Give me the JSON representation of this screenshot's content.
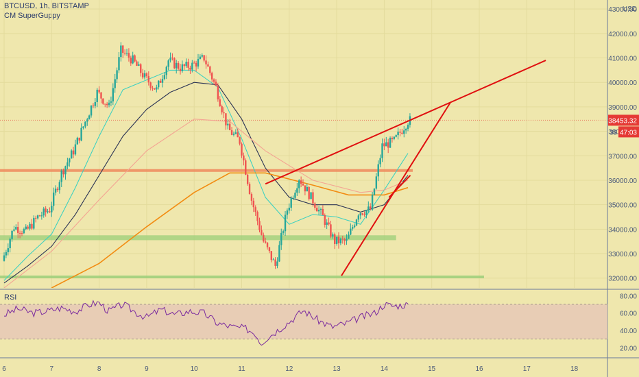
{
  "header": {
    "symbol": "BTCUSD, 1h, BITSTAMP",
    "indicator": "CM SuperGuppy",
    "rsi_label": "RSI"
  },
  "colors": {
    "background": "#efe7ad",
    "rsi_band": "#e6c8b6",
    "candle_up": "#26a69a",
    "candle_down": "#ef5350",
    "trendline": "#e01010",
    "support_orange": "#f08a5d",
    "support_green": "#9ccf7a",
    "ma_orange": "#f28c12",
    "ma_teal": "#3fd1c0",
    "ma_dark": "#2b3455",
    "ma_pink": "#f4a493",
    "rsi_line": "#7a2a9e",
    "price_tag": "#e53935",
    "axis_text": "#4a5a7a"
  },
  "chart_data": [
    {
      "type": "candlestick",
      "title": "BTCUSD, 1h, BITSTAMP",
      "indicator": "CM SuperGuppy",
      "currency": "USD",
      "ylim": [
        31600,
        43200
      ],
      "yticks": [
        "43000.00",
        "42000.00",
        "41000.00",
        "40000.00",
        "39000.00",
        "38000.00",
        "37000.00",
        "36000.00",
        "35000.00",
        "34000.00",
        "33000.00",
        "32000.00"
      ],
      "xticks": [
        "6",
        "7",
        "8",
        "9",
        "10",
        "11",
        "12",
        "13",
        "14",
        "15",
        "16",
        "17",
        "18"
      ],
      "last_price": "38453.32",
      "countdown": "47:03",
      "countdown_prefix": "38",
      "price_path": [
        {
          "d": 6.0,
          "p": 32700
        },
        {
          "d": 6.25,
          "p": 34100
        },
        {
          "d": 6.5,
          "p": 33900
        },
        {
          "d": 6.75,
          "p": 34500
        },
        {
          "d": 7.0,
          "p": 34800
        },
        {
          "d": 7.25,
          "p": 36300
        },
        {
          "d": 7.5,
          "p": 37200
        },
        {
          "d": 7.75,
          "p": 38400
        },
        {
          "d": 8.0,
          "p": 39600
        },
        {
          "d": 8.25,
          "p": 39000
        },
        {
          "d": 8.5,
          "p": 41300
        },
        {
          "d": 8.75,
          "p": 40900
        },
        {
          "d": 9.0,
          "p": 40200
        },
        {
          "d": 9.25,
          "p": 39700
        },
        {
          "d": 9.5,
          "p": 40900
        },
        {
          "d": 9.75,
          "p": 40600
        },
        {
          "d": 10.0,
          "p": 40700
        },
        {
          "d": 10.25,
          "p": 41000
        },
        {
          "d": 10.5,
          "p": 39800
        },
        {
          "d": 10.75,
          "p": 38100
        },
        {
          "d": 11.0,
          "p": 37600
        },
        {
          "d": 11.25,
          "p": 35200
        },
        {
          "d": 11.5,
          "p": 33500
        },
        {
          "d": 11.75,
          "p": 32500
        },
        {
          "d": 12.0,
          "p": 34800
        },
        {
          "d": 12.25,
          "p": 36100
        },
        {
          "d": 12.5,
          "p": 35300
        },
        {
          "d": 12.75,
          "p": 34500
        },
        {
          "d": 13.0,
          "p": 33500
        },
        {
          "d": 13.25,
          "p": 33500
        },
        {
          "d": 13.5,
          "p": 34700
        },
        {
          "d": 13.75,
          "p": 34800
        },
        {
          "d": 14.0,
          "p": 37400
        },
        {
          "d": 14.25,
          "p": 37600
        },
        {
          "d": 14.55,
          "p": 38450
        }
      ],
      "moving_averages": [
        {
          "color_key": "ma_teal",
          "points": [
            {
              "d": 6.0,
              "p": 31900
            },
            {
              "d": 6.5,
              "p": 32900
            },
            {
              "d": 7.0,
              "p": 33800
            },
            {
              "d": 7.5,
              "p": 35700
            },
            {
              "d": 8.0,
              "p": 37800
            },
            {
              "d": 8.5,
              "p": 39700
            },
            {
              "d": 9.0,
              "p": 40100
            },
            {
              "d": 9.5,
              "p": 40500
            },
            {
              "d": 10.0,
              "p": 40500
            },
            {
              "d": 10.5,
              "p": 39800
            },
            {
              "d": 11.0,
              "p": 37700
            },
            {
              "d": 11.5,
              "p": 35300
            },
            {
              "d": 12.0,
              "p": 34200
            },
            {
              "d": 12.5,
              "p": 34600
            },
            {
              "d": 13.0,
              "p": 34500
            },
            {
              "d": 13.5,
              "p": 34200
            },
            {
              "d": 14.0,
              "p": 35600
            },
            {
              "d": 14.5,
              "p": 37100
            }
          ]
        },
        {
          "color_key": "ma_dark",
          "points": [
            {
              "d": 6.0,
              "p": 31800
            },
            {
              "d": 6.5,
              "p": 32500
            },
            {
              "d": 7.0,
              "p": 33300
            },
            {
              "d": 7.5,
              "p": 34600
            },
            {
              "d": 8.0,
              "p": 36200
            },
            {
              "d": 8.5,
              "p": 37800
            },
            {
              "d": 9.0,
              "p": 38900
            },
            {
              "d": 9.5,
              "p": 39600
            },
            {
              "d": 10.0,
              "p": 40000
            },
            {
              "d": 10.5,
              "p": 39900
            },
            {
              "d": 11.0,
              "p": 38500
            },
            {
              "d": 11.5,
              "p": 36500
            },
            {
              "d": 12.0,
              "p": 35300
            },
            {
              "d": 12.5,
              "p": 35000
            },
            {
              "d": 13.0,
              "p": 35000
            },
            {
              "d": 13.5,
              "p": 34700
            },
            {
              "d": 14.0,
              "p": 35000
            },
            {
              "d": 14.5,
              "p": 36200
            }
          ]
        },
        {
          "color_key": "ma_pink",
          "points": [
            {
              "d": 6.0,
              "p": 31600
            },
            {
              "d": 7.0,
              "p": 33100
            },
            {
              "d": 8.0,
              "p": 35200
            },
            {
              "d": 9.0,
              "p": 37200
            },
            {
              "d": 10.0,
              "p": 38500
            },
            {
              "d": 10.75,
              "p": 38400
            },
            {
              "d": 11.5,
              "p": 37200
            },
            {
              "d": 12.5,
              "p": 36000
            },
            {
              "d": 13.5,
              "p": 35500
            },
            {
              "d": 14.0,
              "p": 35600
            },
            {
              "d": 14.5,
              "p": 36000
            }
          ]
        },
        {
          "color_key": "ma_orange",
          "points": [
            {
              "d": 7.0,
              "p": 31600
            },
            {
              "d": 8.0,
              "p": 32600
            },
            {
              "d": 9.0,
              "p": 34100
            },
            {
              "d": 10.0,
              "p": 35500
            },
            {
              "d": 10.75,
              "p": 36300
            },
            {
              "d": 11.5,
              "p": 36300
            },
            {
              "d": 12.5,
              "p": 35800
            },
            {
              "d": 13.25,
              "p": 35400
            },
            {
              "d": 14.0,
              "p": 35400
            },
            {
              "d": 14.5,
              "p": 35700
            }
          ]
        }
      ],
      "support_zones": [
        {
          "color_key": "support_orange",
          "from_day": 5.25,
          "to_day": 14.6,
          "price": 36400
        },
        {
          "color_key": "support_green",
          "from_day": 5.25,
          "to_day": 14.25,
          "price_low": 33550,
          "price_high": 33750
        },
        {
          "color_key": "support_green",
          "from_day": 5.25,
          "to_day": 16.1,
          "price": 32050
        }
      ],
      "trendlines": [
        {
          "x1": 11.5,
          "y1": 35850,
          "x2": 17.4,
          "y2": 40900
        },
        {
          "x1": 13.1,
          "y1": 32100,
          "x2": 15.4,
          "y2": 39200
        },
        {
          "x1": 14.1,
          "y1": 35300,
          "x2": 14.55,
          "y2": 36200
        }
      ]
    },
    {
      "type": "line",
      "title": "RSI",
      "ylim": [
        10,
        85
      ],
      "yticks": [
        "80.00",
        "60.00",
        "40.00",
        "20.00"
      ],
      "band": [
        30,
        70
      ],
      "points": [
        {
          "d": 6.0,
          "p": 58
        },
        {
          "d": 6.3,
          "p": 65
        },
        {
          "d": 6.6,
          "p": 60
        },
        {
          "d": 6.9,
          "p": 62
        },
        {
          "d": 7.2,
          "p": 66
        },
        {
          "d": 7.5,
          "p": 62
        },
        {
          "d": 7.8,
          "p": 70
        },
        {
          "d": 8.0,
          "p": 72
        },
        {
          "d": 8.2,
          "p": 62
        },
        {
          "d": 8.5,
          "p": 70
        },
        {
          "d": 8.8,
          "p": 60
        },
        {
          "d": 9.0,
          "p": 55
        },
        {
          "d": 9.3,
          "p": 64
        },
        {
          "d": 9.6,
          "p": 58
        },
        {
          "d": 9.9,
          "p": 62
        },
        {
          "d": 10.2,
          "p": 60
        },
        {
          "d": 10.5,
          "p": 48
        },
        {
          "d": 10.8,
          "p": 44
        },
        {
          "d": 11.1,
          "p": 42
        },
        {
          "d": 11.3,
          "p": 36
        },
        {
          "d": 11.4,
          "p": 25
        },
        {
          "d": 11.5,
          "p": 30
        },
        {
          "d": 11.7,
          "p": 38
        },
        {
          "d": 12.0,
          "p": 50
        },
        {
          "d": 12.3,
          "p": 63
        },
        {
          "d": 12.6,
          "p": 52
        },
        {
          "d": 12.9,
          "p": 44
        },
        {
          "d": 13.2,
          "p": 48
        },
        {
          "d": 13.5,
          "p": 55
        },
        {
          "d": 13.8,
          "p": 60
        },
        {
          "d": 14.0,
          "p": 70
        },
        {
          "d": 14.2,
          "p": 68
        },
        {
          "d": 14.5,
          "p": 70
        }
      ]
    }
  ]
}
